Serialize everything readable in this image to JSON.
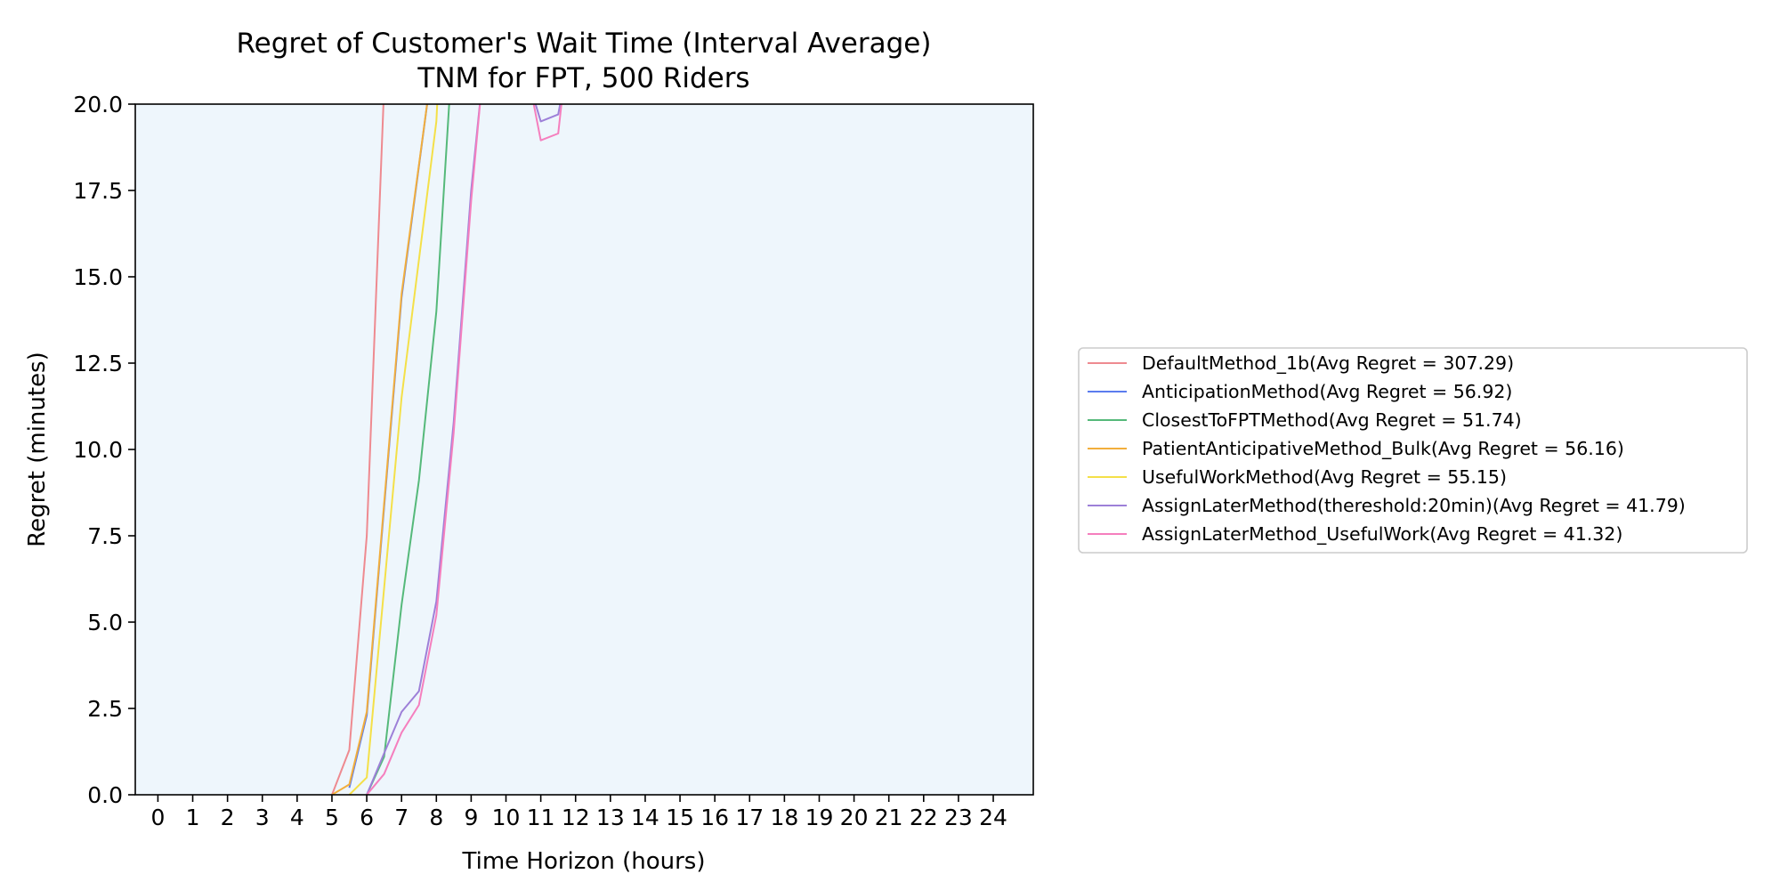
{
  "chart_data": {
    "type": "line",
    "title": "Regret of Customer's Wait Time (Interval Average)",
    "subtitle": "TNM for FPT, 500 Riders",
    "xlabel": "Time Horizon (hours)",
    "ylabel": "Regret (minutes)",
    "xlim": [
      -0.65,
      25.15
    ],
    "ylim": [
      0,
      20
    ],
    "x_ticks": [
      "0",
      "1",
      "2",
      "3",
      "4",
      "5",
      "6",
      "7",
      "8",
      "9",
      "10",
      "11",
      "12",
      "13",
      "14",
      "15",
      "16",
      "17",
      "18",
      "19",
      "20",
      "21",
      "22",
      "23",
      "24"
    ],
    "y_ticks": [
      "0.0",
      "2.5",
      "5.0",
      "7.5",
      "10.0",
      "12.5",
      "15.0",
      "17.5",
      "20.0"
    ],
    "grid": false,
    "plot_background": "#eef6fc",
    "legend_position": "right",
    "series": [
      {
        "name": "DefaultMethod_1b(Avg Regret = 307.29)",
        "color": "#ee8a90",
        "points": [
          [
            5,
            0
          ],
          [
            5.5,
            1.3
          ],
          [
            6,
            7.5
          ],
          [
            6.5,
            20.5
          ]
        ]
      },
      {
        "name": "AnticipationMethod(Avg Regret = 56.92)",
        "color": "#5b7cee",
        "points": [
          [
            5.5,
            0.2
          ],
          [
            6,
            2.3
          ],
          [
            7,
            14.4
          ],
          [
            7.8,
            20.5
          ]
        ]
      },
      {
        "name": "ClosestToFPTMethod(Avg Regret = 51.74)",
        "color": "#55b97a",
        "points": [
          [
            6,
            0
          ],
          [
            6.5,
            1.1
          ],
          [
            7,
            5.5
          ],
          [
            7.5,
            9.1
          ],
          [
            8,
            14.0
          ],
          [
            8.4,
            20.5
          ]
        ]
      },
      {
        "name": "PatientAnticipativeMethod_Bulk(Avg Regret = 56.16)",
        "color": "#f2ae3c",
        "points": [
          [
            5,
            0
          ],
          [
            5.5,
            0.3
          ],
          [
            6,
            2.4
          ],
          [
            7,
            14.5
          ],
          [
            7.8,
            20.5
          ]
        ]
      },
      {
        "name": "UsefulWorkMethod(Avg Regret = 55.15)",
        "color": "#f4e048",
        "points": [
          [
            5.5,
            0
          ],
          [
            6,
            0.5
          ],
          [
            7,
            11.5
          ],
          [
            8,
            19.5
          ],
          [
            8.05,
            20.5
          ]
        ]
      },
      {
        "name": "AssignLaterMethod(thereshold:20min)(Avg Regret = 41.79)",
        "color": "#9d80d8",
        "points": [
          [
            6,
            0
          ],
          [
            6.5,
            1.2
          ],
          [
            7,
            2.4
          ],
          [
            7.5,
            3.0
          ],
          [
            8,
            5.6
          ],
          [
            8.5,
            10.8
          ],
          [
            9,
            17.5
          ],
          [
            9.3,
            20.5
          ],
          [
            10.7,
            20.5
          ],
          [
            11,
            19.5
          ],
          [
            11.5,
            19.7
          ],
          [
            11.65,
            20.5
          ]
        ]
      },
      {
        "name": "AssignLaterMethod_UsefulWork(Avg Regret = 41.32)",
        "color": "#f57fbe",
        "points": [
          [
            6,
            0
          ],
          [
            6.5,
            0.6
          ],
          [
            7,
            1.8
          ],
          [
            7.5,
            2.6
          ],
          [
            8,
            5.2
          ],
          [
            8.5,
            10.5
          ],
          [
            9,
            17.2
          ],
          [
            9.3,
            20.5
          ],
          [
            10.7,
            20.5
          ],
          [
            11,
            18.95
          ],
          [
            11.5,
            19.15
          ],
          [
            11.65,
            20.5
          ]
        ]
      }
    ]
  }
}
